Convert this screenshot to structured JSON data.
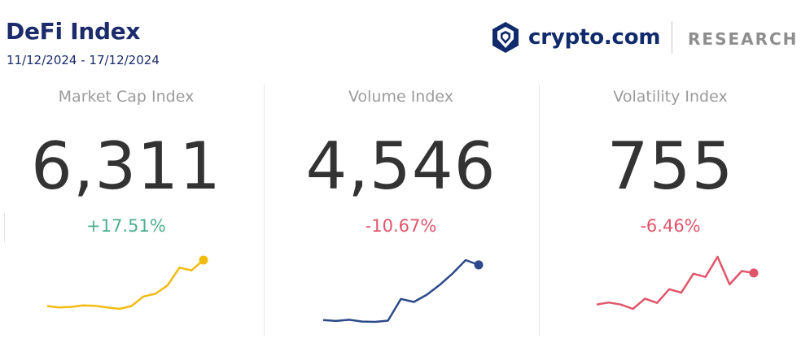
{
  "header": {
    "title": "DeFi Index",
    "date_range": "11/12/2024 - 17/12/2024"
  },
  "brand": {
    "name": "crypto.com",
    "section": "RESEARCH",
    "logo_icon": "crypto-com-lion-shield-icon",
    "color": "#102a6b"
  },
  "colors": {
    "positive": "#4caf8f",
    "negative": "#e0556a"
  },
  "cards": [
    {
      "label": "Market Cap Index",
      "value": "6,311",
      "change": "+17.51%",
      "trend": "positive",
      "line_color": "#f2bb0f",
      "series": [
        100.8,
        100.0,
        100.4,
        101.2,
        101.0,
        100.0,
        99.2,
        100.8,
        106.4,
        108.0,
        112.8,
        123.2,
        121.6,
        127.6
      ]
    },
    {
      "label": "Volume Index",
      "value": "4,546",
      "change": "-10.67%",
      "trend": "negative",
      "line_color": "#2c4a8a",
      "series": [
        100.6,
        100.0,
        100.8,
        99.6,
        99.4,
        100.2,
        114.6,
        112.6,
        117.4,
        124.0,
        131.6,
        140.4,
        137.2
      ]
    },
    {
      "label": "Volatility Index",
      "value": "755",
      "change": "-6.46%",
      "trend": "negative",
      "line_color": "#e0556a",
      "series": [
        100.8,
        101.8,
        100.8,
        98.6,
        103.8,
        101.6,
        108.6,
        106.8,
        116.4,
        114.8,
        125.0,
        111.0,
        117.8,
        116.8
      ]
    }
  ]
}
